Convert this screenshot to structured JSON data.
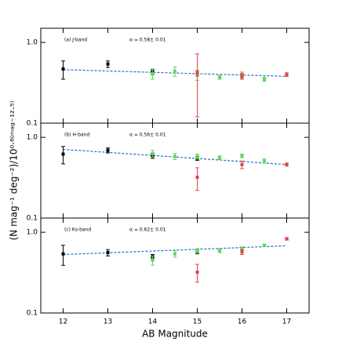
{
  "chart_data": [
    {
      "type": "scatter",
      "title": "(a)  J-band",
      "annotation": "α = 0.58± 0.01",
      "log_y": true,
      "xlim": [
        11.5,
        17.5
      ],
      "xticks": [
        12,
        13,
        14,
        15,
        16,
        17
      ],
      "ylim": [
        0.1,
        1.5
      ],
      "yticks": [
        0.1,
        {
          "value": 1,
          "label": "1.0"
        }
      ],
      "series": [
        {
          "color": "#000000",
          "x": [
            12,
            13,
            14
          ],
          "values": [
            0.47,
            0.54,
            0.43
          ],
          "errors": [
            0.12,
            0.05,
            0.03
          ]
        },
        {
          "color": "#5fd95a",
          "x": [
            14,
            14.5,
            15,
            15.5,
            16,
            16.5
          ],
          "values": [
            0.41,
            0.44,
            0.39,
            0.37,
            0.37,
            0.35
          ],
          "errors": [
            0.06,
            0.06,
            0.05,
            0.02,
            0.02,
            0.02
          ]
        },
        {
          "color": "#c08a3a",
          "x": [
            15,
            16
          ],
          "values": [
            0.42,
            0.4
          ],
          "errors": [
            0.03,
            0.03
          ]
        },
        {
          "color": "#e8404a",
          "x": [
            15,
            16,
            17
          ],
          "values": [
            0.42,
            0.38,
            0.4
          ],
          "errors": [
            0.3,
            0.03,
            0.02
          ]
        }
      ],
      "fit": {
        "color": "#1f6fd0",
        "x": [
          12,
          17
        ],
        "values": [
          0.46,
          0.38
        ]
      }
    },
    {
      "type": "scatter",
      "title": "(b)  H-band",
      "annotation": "α = 0.56± 0.01",
      "log_y": true,
      "ylabel": "(N mag⁻¹ deg⁻²)/10⁰·⁶⁽ᵐᵃᵍ⁻¹²·⁵⁾",
      "xlim": [
        11.5,
        17.5
      ],
      "xticks": [
        12,
        13,
        14,
        15,
        16,
        17
      ],
      "ylim": [
        0.1,
        1.5
      ],
      "yticks": [
        0.1,
        {
          "value": 1,
          "label": "1.0"
        }
      ],
      "series": [
        {
          "color": "#000000",
          "x": [
            12,
            13,
            14,
            15
          ],
          "values": [
            0.62,
            0.69,
            0.59,
            0.55
          ],
          "errors": [
            0.15,
            0.05,
            0.04,
            0.03
          ]
        },
        {
          "color": "#5fd95a",
          "x": [
            14,
            14.5,
            15,
            15.5,
            16,
            16.5
          ],
          "values": [
            0.63,
            0.58,
            0.58,
            0.56,
            0.59,
            0.51
          ],
          "errors": [
            0.06,
            0.05,
            0.04,
            0.03,
            0.03,
            0.03
          ]
        },
        {
          "color": "#e8404a",
          "x": [
            15,
            16,
            17
          ],
          "values": [
            0.32,
            0.46,
            0.46
          ],
          "errors": [
            0.1,
            0.05,
            0.02
          ]
        }
      ],
      "fit": {
        "color": "#1f6fd0",
        "x": [
          12,
          17
        ],
        "values": [
          0.71,
          0.46
        ]
      }
    },
    {
      "type": "scatter",
      "title": "(c)  Ks-band",
      "annotation": "α = 0.62± 0.01",
      "log_y": true,
      "xlabel": "AB Magnitude",
      "xlim": [
        11.5,
        17.5
      ],
      "xticks": [
        12,
        13,
        14,
        15,
        16,
        17
      ],
      "ylim": [
        0.1,
        1.5
      ],
      "yticks": [
        0.1,
        {
          "value": 1,
          "label": "1.0"
        }
      ],
      "series": [
        {
          "color": "#000000",
          "x": [
            12,
            13,
            14,
            15
          ],
          "values": [
            0.54,
            0.56,
            0.5,
            0.57
          ],
          "errors": [
            0.15,
            0.05,
            0.03,
            0.03
          ]
        },
        {
          "color": "#5fd95a",
          "x": [
            14,
            14.5,
            15,
            15.5,
            16,
            16.5
          ],
          "values": [
            0.45,
            0.54,
            0.59,
            0.59,
            0.63,
            0.69
          ],
          "errors": [
            0.06,
            0.05,
            0.04,
            0.03,
            0.03,
            0.02
          ]
        },
        {
          "color": "#e8404a",
          "x": [
            15,
            16,
            17
          ],
          "values": [
            0.32,
            0.57,
            0.83
          ],
          "errors": [
            0.08,
            0.04,
            0.03
          ]
        }
      ],
      "fit": {
        "color": "#1f6fd0",
        "x": [
          12,
          17
        ],
        "values": [
          0.53,
          0.68
        ]
      }
    }
  ]
}
